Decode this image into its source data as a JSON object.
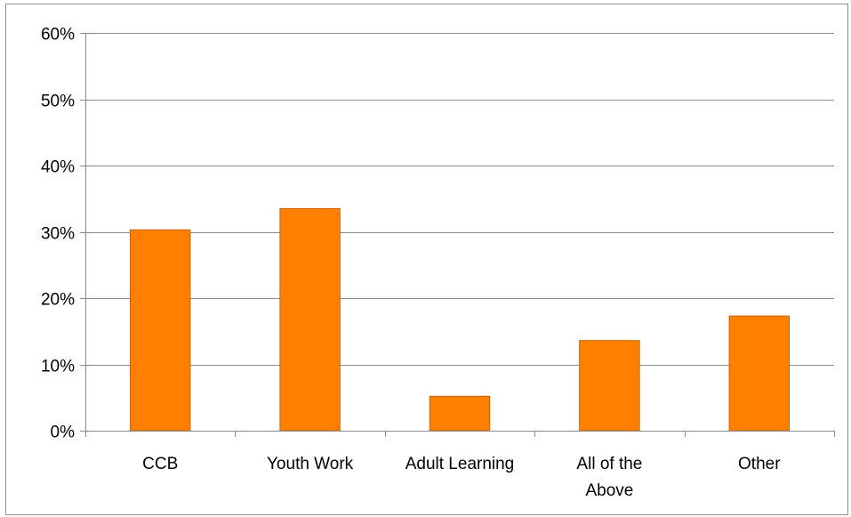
{
  "chart_data": {
    "type": "bar",
    "title": "",
    "xlabel": "",
    "ylabel": "",
    "categories": [
      [
        "CCB"
      ],
      [
        "Youth Work"
      ],
      [
        "Adult Learning"
      ],
      [
        "All of the",
        "Above"
      ],
      [
        "Other"
      ]
    ],
    "values": [
      30.3,
      33.5,
      5.2,
      13.6,
      17.3
    ],
    "ylim": [
      0,
      60
    ],
    "yticks": [
      0,
      10,
      20,
      30,
      40,
      50,
      60
    ],
    "ytick_labels": [
      "0%",
      "10%",
      "20%",
      "30%",
      "40%",
      "50%",
      "60%"
    ],
    "grid": true,
    "legend": "none",
    "colors": {
      "bar_fill": "#ff7f00",
      "bar_stroke": "#c86400",
      "grid": "#8c8c8c",
      "axis": "#8c8c8c"
    }
  }
}
